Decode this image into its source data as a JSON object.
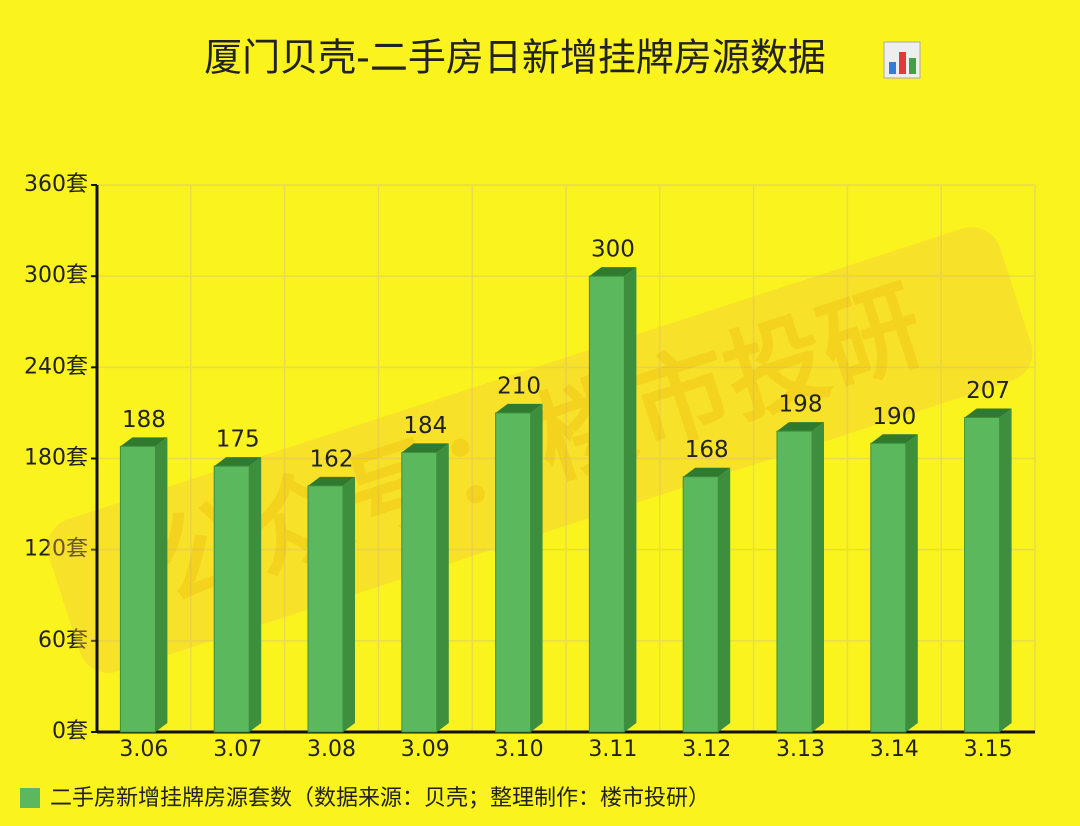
{
  "chart_data": {
    "type": "bar",
    "title": "厦门贝壳-二手房日新增挂牌房源数据",
    "watermark": "公众号：楼市投研",
    "categories": [
      "3.06",
      "3.07",
      "3.08",
      "3.09",
      "3.10",
      "3.11",
      "3.12",
      "3.13",
      "3.14",
      "3.15"
    ],
    "series": [
      {
        "name": "二手房新增挂牌房源套数（数据来源：贝壳；整理制作：楼市投研）",
        "color": "#5cb85c",
        "values": [
          188,
          175,
          162,
          184,
          210,
          300,
          168,
          198,
          190,
          207
        ]
      }
    ],
    "ylim": [
      0,
      360
    ],
    "yticks": [
      {
        "value": 0,
        "label": "0套"
      },
      {
        "value": 60,
        "label": "60套"
      },
      {
        "value": 120,
        "label": "120套"
      },
      {
        "value": 180,
        "label": "180套"
      },
      {
        "value": 240,
        "label": "240套"
      },
      {
        "value": 300,
        "label": "300套"
      },
      {
        "value": 360,
        "label": "360套"
      }
    ],
    "grid": true
  }
}
